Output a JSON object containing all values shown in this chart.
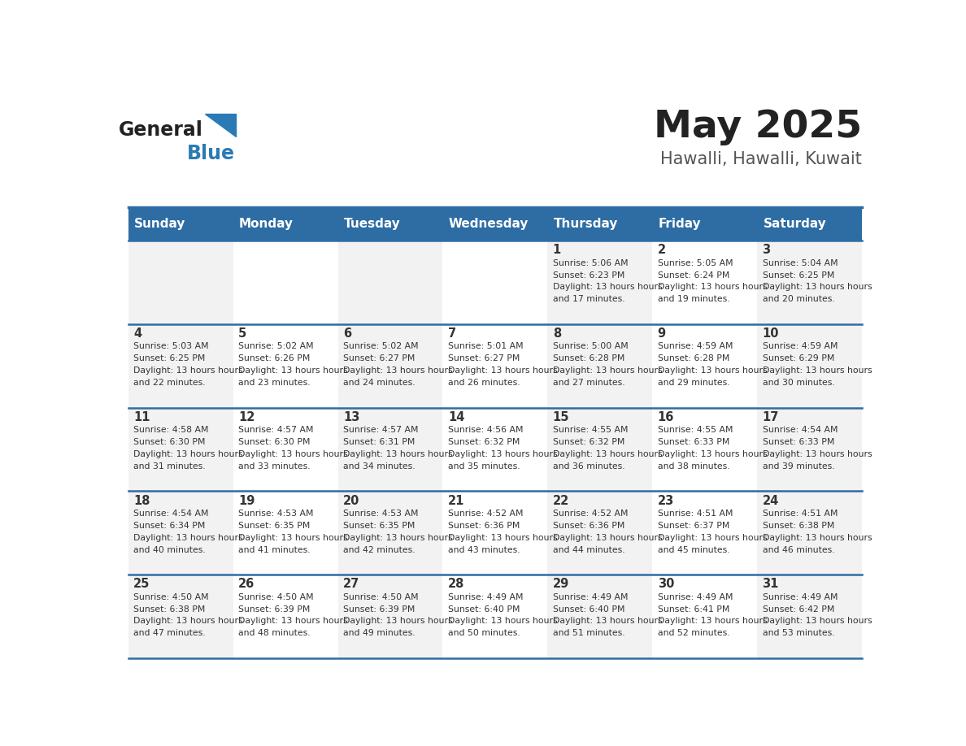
{
  "title": "May 2025",
  "subtitle": "Hawalli, Hawalli, Kuwait",
  "days_of_week": [
    "Sunday",
    "Monday",
    "Tuesday",
    "Wednesday",
    "Thursday",
    "Friday",
    "Saturday"
  ],
  "header_bg": "#2E6DA4",
  "header_text": "#FFFFFF",
  "cell_bg_odd": "#F2F2F2",
  "cell_bg_even": "#FFFFFF",
  "text_color": "#333333",
  "line_color": "#2E6DA4",
  "title_color": "#222222",
  "subtitle_color": "#555555",
  "logo_general_color": "#222222",
  "logo_blue_color": "#2A7AB5",
  "calendar_data": [
    [
      {
        "day": "",
        "sunrise": "",
        "sunset": "",
        "daylight": ""
      },
      {
        "day": "",
        "sunrise": "",
        "sunset": "",
        "daylight": ""
      },
      {
        "day": "",
        "sunrise": "",
        "sunset": "",
        "daylight": ""
      },
      {
        "day": "",
        "sunrise": "",
        "sunset": "",
        "daylight": ""
      },
      {
        "day": "1",
        "sunrise": "5:06 AM",
        "sunset": "6:23 PM",
        "daylight": "13 hours and 17 minutes."
      },
      {
        "day": "2",
        "sunrise": "5:05 AM",
        "sunset": "6:24 PM",
        "daylight": "13 hours and 19 minutes."
      },
      {
        "day": "3",
        "sunrise": "5:04 AM",
        "sunset": "6:25 PM",
        "daylight": "13 hours and 20 minutes."
      }
    ],
    [
      {
        "day": "4",
        "sunrise": "5:03 AM",
        "sunset": "6:25 PM",
        "daylight": "13 hours and 22 minutes."
      },
      {
        "day": "5",
        "sunrise": "5:02 AM",
        "sunset": "6:26 PM",
        "daylight": "13 hours and 23 minutes."
      },
      {
        "day": "6",
        "sunrise": "5:02 AM",
        "sunset": "6:27 PM",
        "daylight": "13 hours and 24 minutes."
      },
      {
        "day": "7",
        "sunrise": "5:01 AM",
        "sunset": "6:27 PM",
        "daylight": "13 hours and 26 minutes."
      },
      {
        "day": "8",
        "sunrise": "5:00 AM",
        "sunset": "6:28 PM",
        "daylight": "13 hours and 27 minutes."
      },
      {
        "day": "9",
        "sunrise": "4:59 AM",
        "sunset": "6:28 PM",
        "daylight": "13 hours and 29 minutes."
      },
      {
        "day": "10",
        "sunrise": "4:59 AM",
        "sunset": "6:29 PM",
        "daylight": "13 hours and 30 minutes."
      }
    ],
    [
      {
        "day": "11",
        "sunrise": "4:58 AM",
        "sunset": "6:30 PM",
        "daylight": "13 hours and 31 minutes."
      },
      {
        "day": "12",
        "sunrise": "4:57 AM",
        "sunset": "6:30 PM",
        "daylight": "13 hours and 33 minutes."
      },
      {
        "day": "13",
        "sunrise": "4:57 AM",
        "sunset": "6:31 PM",
        "daylight": "13 hours and 34 minutes."
      },
      {
        "day": "14",
        "sunrise": "4:56 AM",
        "sunset": "6:32 PM",
        "daylight": "13 hours and 35 minutes."
      },
      {
        "day": "15",
        "sunrise": "4:55 AM",
        "sunset": "6:32 PM",
        "daylight": "13 hours and 36 minutes."
      },
      {
        "day": "16",
        "sunrise": "4:55 AM",
        "sunset": "6:33 PM",
        "daylight": "13 hours and 38 minutes."
      },
      {
        "day": "17",
        "sunrise": "4:54 AM",
        "sunset": "6:33 PM",
        "daylight": "13 hours and 39 minutes."
      }
    ],
    [
      {
        "day": "18",
        "sunrise": "4:54 AM",
        "sunset": "6:34 PM",
        "daylight": "13 hours and 40 minutes."
      },
      {
        "day": "19",
        "sunrise": "4:53 AM",
        "sunset": "6:35 PM",
        "daylight": "13 hours and 41 minutes."
      },
      {
        "day": "20",
        "sunrise": "4:53 AM",
        "sunset": "6:35 PM",
        "daylight": "13 hours and 42 minutes."
      },
      {
        "day": "21",
        "sunrise": "4:52 AM",
        "sunset": "6:36 PM",
        "daylight": "13 hours and 43 minutes."
      },
      {
        "day": "22",
        "sunrise": "4:52 AM",
        "sunset": "6:36 PM",
        "daylight": "13 hours and 44 minutes."
      },
      {
        "day": "23",
        "sunrise": "4:51 AM",
        "sunset": "6:37 PM",
        "daylight": "13 hours and 45 minutes."
      },
      {
        "day": "24",
        "sunrise": "4:51 AM",
        "sunset": "6:38 PM",
        "daylight": "13 hours and 46 minutes."
      }
    ],
    [
      {
        "day": "25",
        "sunrise": "4:50 AM",
        "sunset": "6:38 PM",
        "daylight": "13 hours and 47 minutes."
      },
      {
        "day": "26",
        "sunrise": "4:50 AM",
        "sunset": "6:39 PM",
        "daylight": "13 hours and 48 minutes."
      },
      {
        "day": "27",
        "sunrise": "4:50 AM",
        "sunset": "6:39 PM",
        "daylight": "13 hours and 49 minutes."
      },
      {
        "day": "28",
        "sunrise": "4:49 AM",
        "sunset": "6:40 PM",
        "daylight": "13 hours and 50 minutes."
      },
      {
        "day": "29",
        "sunrise": "4:49 AM",
        "sunset": "6:40 PM",
        "daylight": "13 hours and 51 minutes."
      },
      {
        "day": "30",
        "sunrise": "4:49 AM",
        "sunset": "6:41 PM",
        "daylight": "13 hours and 52 minutes."
      },
      {
        "day": "31",
        "sunrise": "4:49 AM",
        "sunset": "6:42 PM",
        "daylight": "13 hours and 53 minutes."
      }
    ]
  ]
}
